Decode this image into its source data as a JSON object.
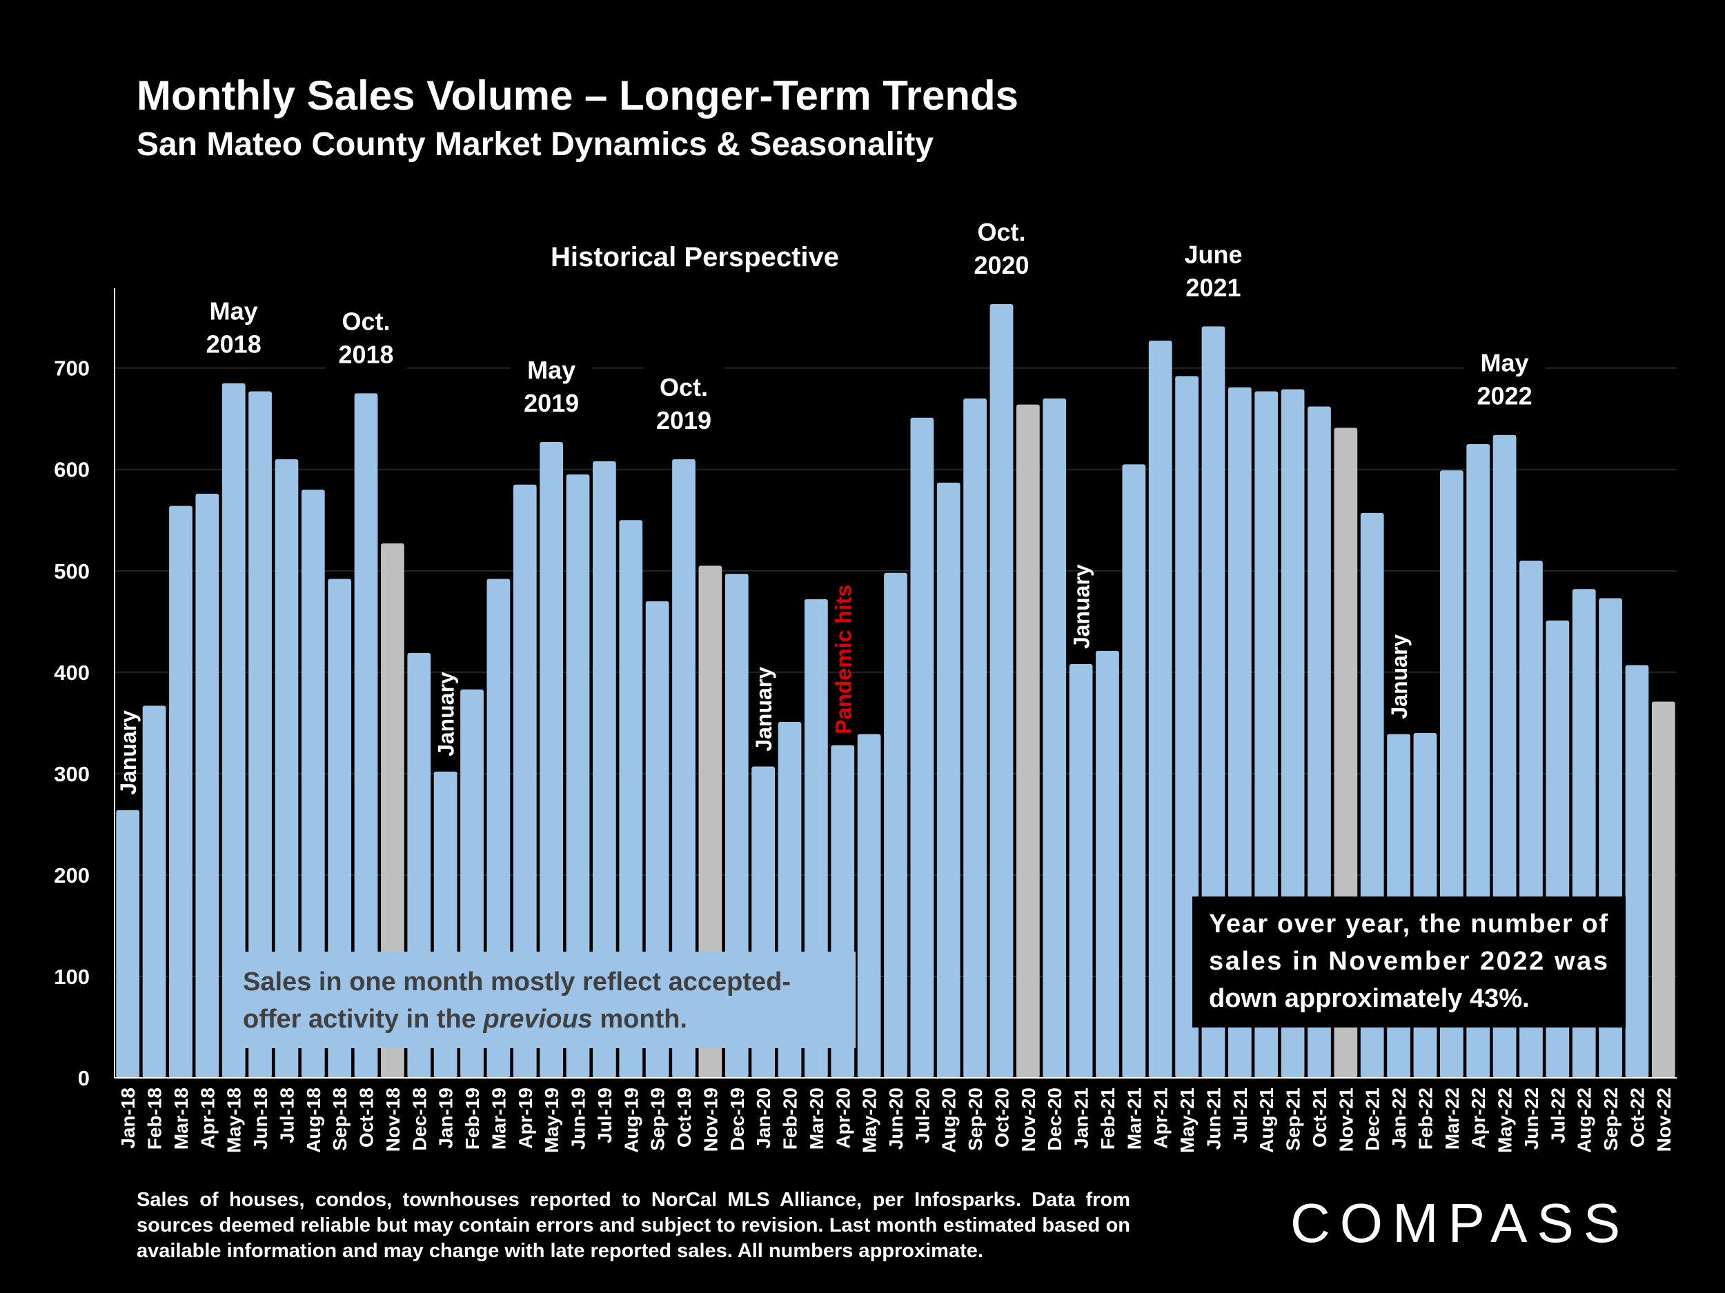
{
  "header": {
    "title": "Monthly Sales Volume – Longer-Term Trends",
    "subtitle": "San Mateo County Market Dynamics & Seasonality"
  },
  "chart_data": {
    "type": "bar",
    "title": "Historical Perspective",
    "xlabel": "",
    "ylabel": "",
    "ylim": [
      0,
      780
    ],
    "yticks": [
      0,
      100,
      200,
      300,
      400,
      500,
      600,
      700
    ],
    "grid": true,
    "colors": {
      "bar": "#9DC3E6",
      "highlight": "#BFBFBF"
    },
    "categories": [
      "Jan-18",
      "Feb-18",
      "Mar-18",
      "Apr-18",
      "May-18",
      "Jun-18",
      "Jul-18",
      "Aug-18",
      "Sep-18",
      "Oct-18",
      "Nov-18",
      "Dec-18",
      "Jan-19",
      "Feb-19",
      "Mar-19",
      "Apr-19",
      "May-19",
      "Jun-19",
      "Jul-19",
      "Aug-19",
      "Sep-19",
      "Oct-19",
      "Nov-19",
      "Dec-19",
      "Jan-20",
      "Feb-20",
      "Mar-20",
      "Apr-20",
      "May-20",
      "Jun-20",
      "Jul-20",
      "Aug-20",
      "Sep-20",
      "Oct-20",
      "Nov-20",
      "Dec-20",
      "Jan-21",
      "Feb-21",
      "Mar-21",
      "Apr-21",
      "May-21",
      "Jun-21",
      "Jul-21",
      "Aug-21",
      "Sep-21",
      "Oct-21",
      "Nov-21",
      "Dec-21",
      "Jan-22",
      "Feb-22",
      "Mar-22",
      "Apr-22",
      "May-22",
      "Jun-22",
      "Jul-22",
      "Aug-22",
      "Sep-22",
      "Oct-22",
      "Nov-22"
    ],
    "values": [
      264,
      367,
      564,
      576,
      685,
      677,
      610,
      580,
      492,
      675,
      527,
      419,
      302,
      383,
      492,
      585,
      627,
      595,
      608,
      550,
      470,
      610,
      505,
      497,
      307,
      351,
      472,
      328,
      339,
      498,
      651,
      587,
      670,
      763,
      664,
      670,
      408,
      421,
      605,
      727,
      692,
      741,
      681,
      677,
      679,
      662,
      641,
      557,
      339,
      340,
      599,
      625,
      634,
      510,
      451,
      482,
      473,
      407,
      371
    ],
    "highlight_months": [
      "Nov-18",
      "Nov-19",
      "Nov-20",
      "Nov-21",
      "Nov-22"
    ],
    "peak_annotations": [
      {
        "month": "May-18",
        "line1": "May",
        "line2": "2018"
      },
      {
        "month": "Oct-18",
        "line1": "Oct.",
        "line2": "2018"
      },
      {
        "month": "May-19",
        "line1": "May",
        "line2": "2019"
      },
      {
        "month": "Oct-19",
        "line1": "Oct.",
        "line2": "2019"
      },
      {
        "month": "Oct-20",
        "line1": "Oct.",
        "line2": "2020"
      },
      {
        "month": "Jun-21",
        "line1": "June",
        "line2": "2021"
      },
      {
        "month": "May-22",
        "line1": "May",
        "line2": "2022"
      }
    ],
    "january_label": "January",
    "january_months": [
      "Jan-18",
      "Jan-19",
      "Jan-20",
      "Jan-21",
      "Jan-22"
    ],
    "pandemic_label": "Pandemic hits",
    "pandemic_month": "Apr-20",
    "left_note": {
      "part1": "Sales in one month mostly reflect accepted-",
      "part2": "offer activity in the ",
      "italic": "previous",
      "part3": " month."
    },
    "right_note": {
      "line1": "Year over year, the number of",
      "line2": "sales in November 2022 was",
      "line3": "down approximately 43%."
    }
  },
  "footer": {
    "footnote": "Sales of houses, condos, townhouses reported to NorCal MLS Alliance, per Infosparks. Data from sources deemed reliable but may contain errors and subject to revision. Last month estimated based on available information and may change with late reported sales. All numbers approximate.",
    "logo": "COMPASS"
  }
}
